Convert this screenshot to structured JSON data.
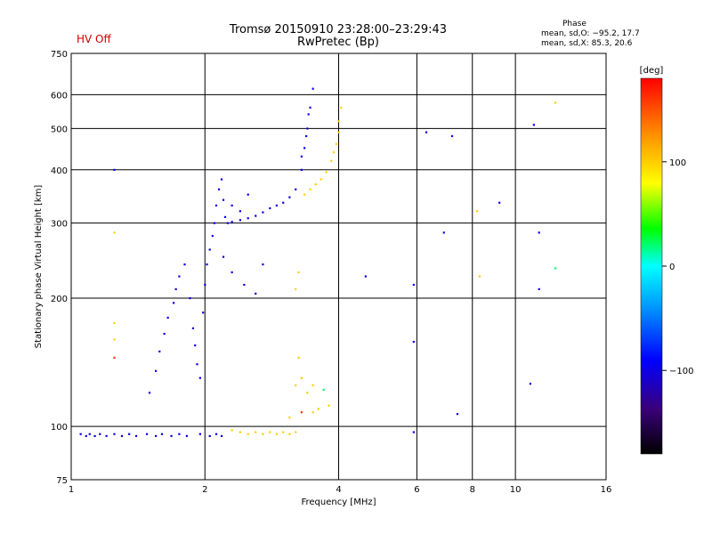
{
  "header": {
    "title": "Tromsø 20150910 23:28:00–23:29:43",
    "subtitle": "RwPretec (Bp)",
    "status": "HV Off",
    "phase_heading": "Phase",
    "phase_o": "mean, sd,O: −95.2, 17.7",
    "phase_x": "mean, sd,X:  85.3, 20.6"
  },
  "chart_data": {
    "type": "scatter",
    "xlabel": "Frequency [MHz]",
    "ylabel": "Stationary phase Virtual Height [km]",
    "xscale": "log",
    "yscale": "log",
    "xlim": [
      1,
      16
    ],
    "ylim": [
      75,
      750
    ],
    "xticks": [
      1,
      2,
      4,
      6,
      8,
      10,
      16
    ],
    "xtick_labels": [
      "1",
      "2",
      "4",
      "6",
      "8",
      "10",
      "16"
    ],
    "yticks": [
      75,
      100,
      200,
      300,
      400,
      500,
      600,
      750
    ],
    "ytick_labels": [
      "75",
      "100",
      "200",
      "300",
      "400",
      "500",
      "600",
      "750"
    ],
    "grid": true,
    "colorbar": {
      "label": "[deg]",
      "range": [
        -180,
        180
      ],
      "ticks": [
        100,
        0,
        -100
      ],
      "tick_labels": [
        "100",
        "0",
        "−100"
      ],
      "colors": [
        "#000000",
        "#3a007a",
        "#0000ff",
        "#00a0ff",
        "#00ffff",
        "#00ff00",
        "#ffff00",
        "#ff9000",
        "#ff0000"
      ]
    },
    "series": [
      {
        "phase": -100,
        "points": [
          [
            1.05,
            96
          ],
          [
            1.08,
            95
          ],
          [
            1.1,
            96
          ],
          [
            1.13,
            95
          ],
          [
            1.16,
            96
          ],
          [
            1.2,
            95
          ],
          [
            1.25,
            96
          ],
          [
            1.3,
            95
          ],
          [
            1.35,
            96
          ],
          [
            1.4,
            95
          ],
          [
            1.48,
            96
          ],
          [
            1.55,
            95
          ],
          [
            1.6,
            96
          ],
          [
            1.68,
            95
          ],
          [
            1.75,
            96
          ],
          [
            1.82,
            95
          ],
          [
            1.95,
            96
          ],
          [
            2.05,
            95
          ],
          [
            2.12,
            96
          ],
          [
            2.18,
            95
          ],
          [
            1.5,
            120
          ],
          [
            1.55,
            135
          ],
          [
            1.58,
            150
          ],
          [
            1.62,
            165
          ],
          [
            1.65,
            180
          ],
          [
            1.7,
            195
          ],
          [
            1.72,
            210
          ],
          [
            1.75,
            225
          ],
          [
            1.8,
            240
          ],
          [
            1.85,
            200
          ],
          [
            1.88,
            170
          ],
          [
            1.9,
            155
          ],
          [
            1.92,
            140
          ],
          [
            1.95,
            130
          ],
          [
            1.98,
            185
          ],
          [
            2.0,
            215
          ],
          [
            2.02,
            240
          ],
          [
            2.05,
            260
          ],
          [
            2.08,
            280
          ],
          [
            2.1,
            300
          ],
          [
            2.12,
            330
          ],
          [
            2.15,
            360
          ],
          [
            2.18,
            380
          ],
          [
            2.2,
            340
          ],
          [
            2.22,
            310
          ],
          [
            2.25,
            300
          ],
          [
            2.3,
            302
          ],
          [
            2.4,
            305
          ],
          [
            2.5,
            308
          ],
          [
            2.6,
            312
          ],
          [
            2.7,
            318
          ],
          [
            2.8,
            325
          ],
          [
            2.9,
            330
          ],
          [
            3.0,
            335
          ],
          [
            3.1,
            345
          ],
          [
            3.2,
            360
          ],
          [
            3.3,
            400
          ],
          [
            3.35,
            450
          ],
          [
            3.4,
            500
          ],
          [
            3.45,
            560
          ],
          [
            3.5,
            620
          ],
          [
            3.42,
            540
          ],
          [
            3.38,
            480
          ],
          [
            3.3,
            430
          ],
          [
            2.3,
            330
          ],
          [
            2.4,
            320
          ],
          [
            2.5,
            350
          ],
          [
            2.2,
            250
          ],
          [
            2.3,
            230
          ],
          [
            2.45,
            215
          ],
          [
            2.6,
            205
          ],
          [
            2.7,
            240
          ],
          [
            1.25,
            400
          ],
          [
            6.3,
            490
          ],
          [
            7.2,
            480
          ],
          [
            9.2,
            335
          ],
          [
            11.0,
            510
          ],
          [
            11.3,
            210
          ],
          [
            10.8,
            126
          ],
          [
            7.4,
            107
          ],
          [
            5.9,
            97
          ],
          [
            4.6,
            225
          ],
          [
            6.9,
            285
          ],
          [
            11.3,
            285
          ],
          [
            5.9,
            215
          ],
          [
            5.9,
            158
          ]
        ]
      },
      {
        "phase": 100,
        "points": [
          [
            2.3,
            98
          ],
          [
            2.4,
            97
          ],
          [
            2.5,
            96
          ],
          [
            2.6,
            97
          ],
          [
            2.7,
            96
          ],
          [
            2.8,
            97
          ],
          [
            2.9,
            96
          ],
          [
            3.0,
            97
          ],
          [
            3.1,
            96
          ],
          [
            3.2,
            97
          ],
          [
            3.35,
            350
          ],
          [
            3.45,
            360
          ],
          [
            3.55,
            370
          ],
          [
            3.65,
            380
          ],
          [
            3.75,
            395
          ],
          [
            3.85,
            420
          ],
          [
            3.95,
            460
          ],
          [
            4.0,
            520
          ],
          [
            4.05,
            560
          ],
          [
            4.0,
            490
          ],
          [
            3.9,
            440
          ],
          [
            3.2,
            125
          ],
          [
            3.25,
            145
          ],
          [
            3.3,
            130
          ],
          [
            3.4,
            120
          ],
          [
            3.5,
            125
          ],
          [
            3.6,
            110
          ],
          [
            3.8,
            112
          ],
          [
            3.1,
            105
          ],
          [
            3.5,
            108
          ],
          [
            3.25,
            230
          ],
          [
            3.2,
            210
          ],
          [
            1.25,
            285
          ],
          [
            1.25,
            175
          ],
          [
            1.25,
            160
          ],
          [
            12.3,
            575
          ],
          [
            8.2,
            320
          ],
          [
            8.3,
            225
          ]
        ]
      },
      {
        "phase": 20,
        "points": [
          [
            12.3,
            235
          ],
          [
            3.7,
            122
          ]
        ]
      },
      {
        "phase": 160,
        "points": [
          [
            1.25,
            145
          ],
          [
            3.3,
            108
          ]
        ]
      }
    ]
  }
}
